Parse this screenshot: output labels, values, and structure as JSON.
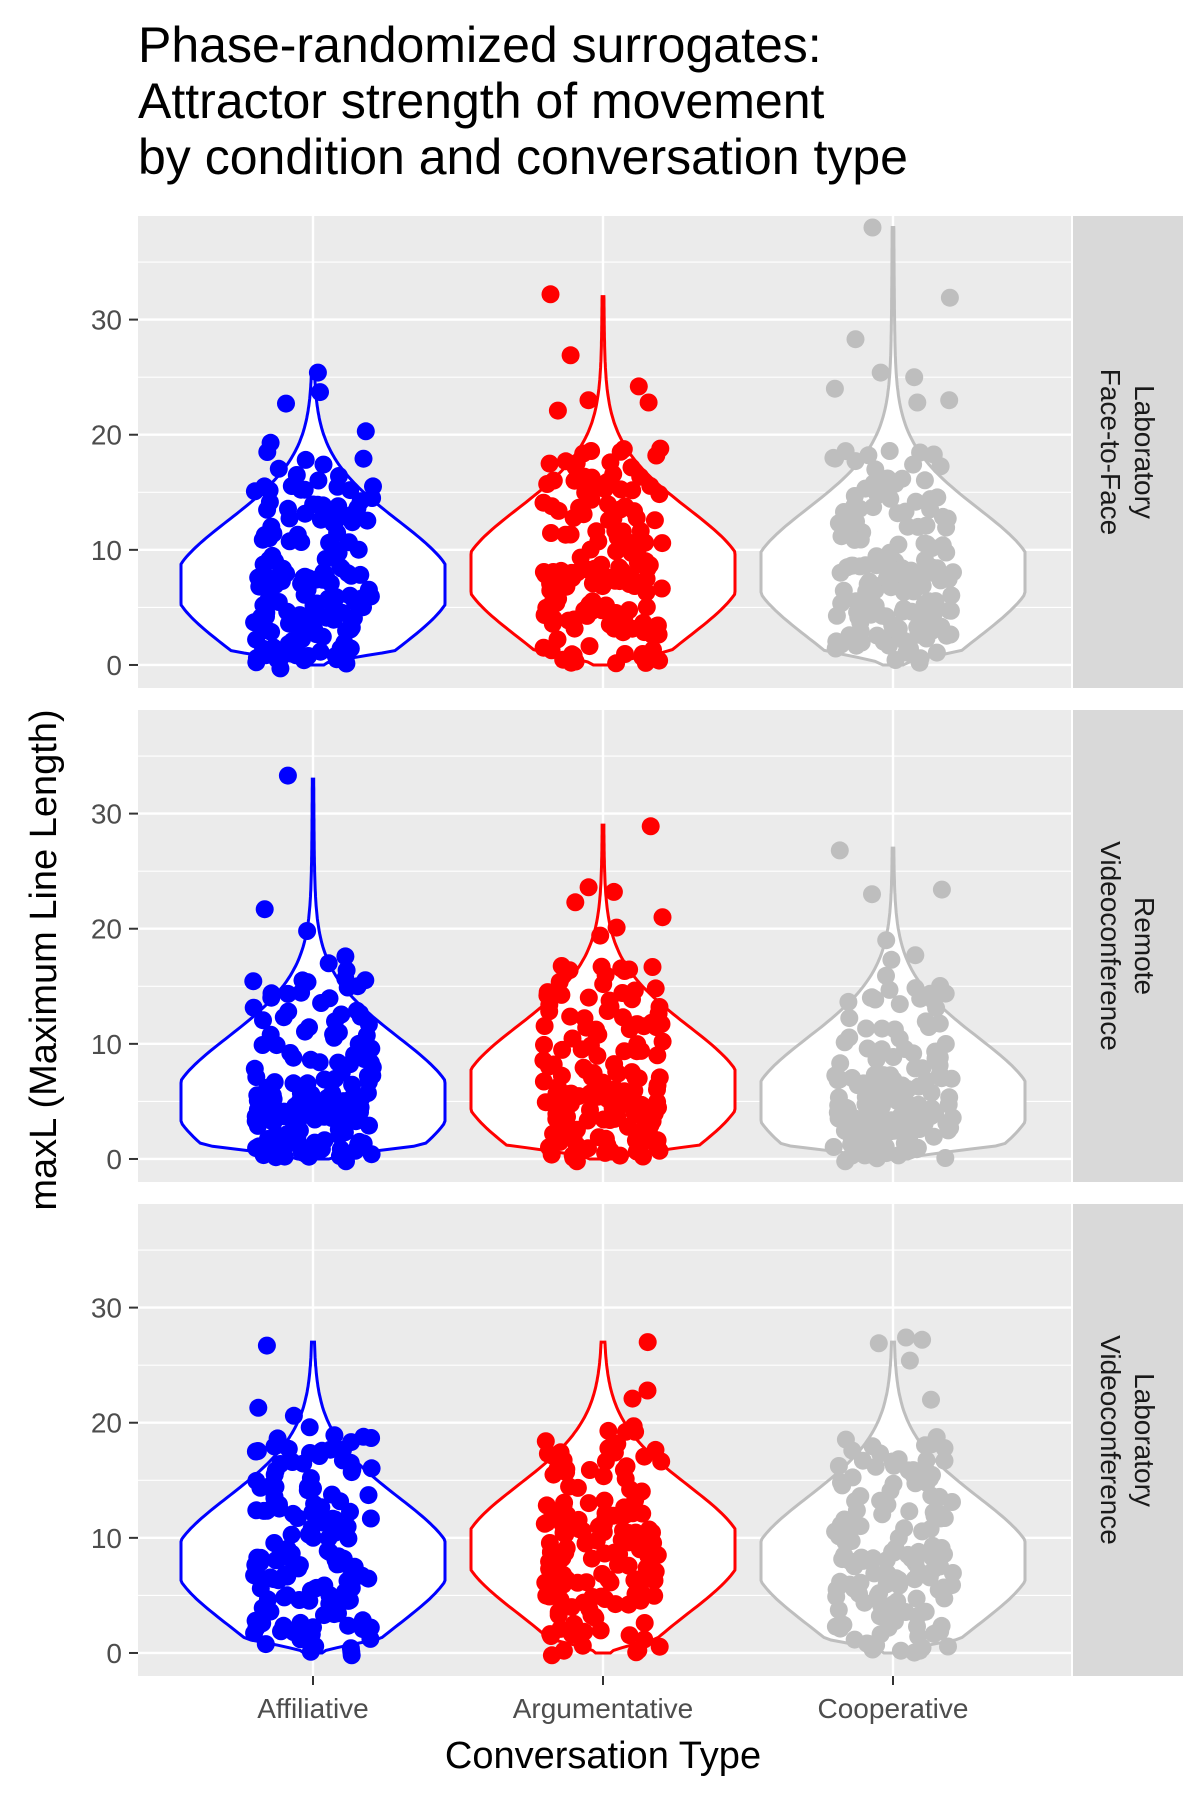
{
  "chart_data": {
    "type": "violin",
    "title": [
      "Phase-randomized surrogates:",
      "Attractor strength of movement",
      "by condition and conversation type"
    ],
    "xlabel": "Conversation Type",
    "ylabel": "maxL (Maximum Line Length)",
    "categories": [
      "Affiliative",
      "Argumentative",
      "Cooperative"
    ],
    "colors": {
      "Affiliative": "#0000ff",
      "Argumentative": "#ff0000",
      "Cooperative": "#bebebe"
    },
    "ylim": [
      -2,
      39
    ],
    "yticks": [
      0,
      10,
      20,
      30
    ],
    "grid": true,
    "panels": [
      {
        "label": [
          "Laboratory",
          "Face-to-Face"
        ],
        "groups": [
          {
            "category": "Affiliative",
            "range": [
              0,
              25
            ],
            "peak": 7,
            "points": 150,
            "outliers": [
              25.4,
              23.7,
              22.7,
              20.3,
              19.3,
              18.5,
              16.5,
              0.5,
              -0.3
            ]
          },
          {
            "category": "Argumentative",
            "range": [
              0,
              32
            ],
            "peak": 8,
            "points": 150,
            "outliers": [
              32.2,
              26.9,
              24.2,
              23.0,
              22.8,
              22.1,
              0.3,
              0.2
            ]
          },
          {
            "category": "Cooperative",
            "range": [
              0,
              38
            ],
            "peak": 8,
            "points": 150,
            "outliers": [
              38.0,
              31.9,
              28.3,
              25.4,
              25.0,
              24.0,
              23.0,
              22.8,
              0.2
            ]
          }
        ]
      },
      {
        "label": [
          "Remote",
          "Videoconference"
        ],
        "groups": [
          {
            "category": "Affiliative",
            "range": [
              0,
              33
            ],
            "peak": 5,
            "points": 150,
            "outliers": [
              33.3,
              21.7,
              19.8,
              17.6,
              17.0,
              16.4,
              0.2,
              -0.2
            ]
          },
          {
            "category": "Argumentative",
            "range": [
              0,
              29
            ],
            "peak": 6,
            "points": 150,
            "outliers": [
              28.9,
              23.6,
              23.2,
              22.3,
              21.0,
              20.1,
              19.4,
              0.1,
              -0.2
            ]
          },
          {
            "category": "Cooperative",
            "range": [
              0,
              27
            ],
            "peak": 5,
            "points": 150,
            "outliers": [
              26.8,
              23.4,
              23.0,
              19.0,
              17.7,
              17.3,
              0.3,
              -0.2
            ]
          }
        ]
      },
      {
        "label": [
          "Laboratory",
          "Videoconference"
        ],
        "groups": [
          {
            "category": "Affiliative",
            "range": [
              0,
              27
            ],
            "peak": 8,
            "points": 150,
            "outliers": [
              26.7,
              21.3,
              20.6,
              19.6,
              0.1,
              -0.2
            ]
          },
          {
            "category": "Argumentative",
            "range": [
              0,
              27
            ],
            "peak": 9,
            "points": 150,
            "outliers": [
              27.0,
              22.8,
              22.1,
              19.7,
              0.2,
              -0.2
            ]
          },
          {
            "category": "Cooperative",
            "range": [
              0,
              27
            ],
            "peak": 8,
            "points": 150,
            "outliers": [
              27.4,
              27.2,
              26.9,
              25.4,
              22.0,
              0.3,
              0.2
            ]
          }
        ]
      }
    ]
  }
}
